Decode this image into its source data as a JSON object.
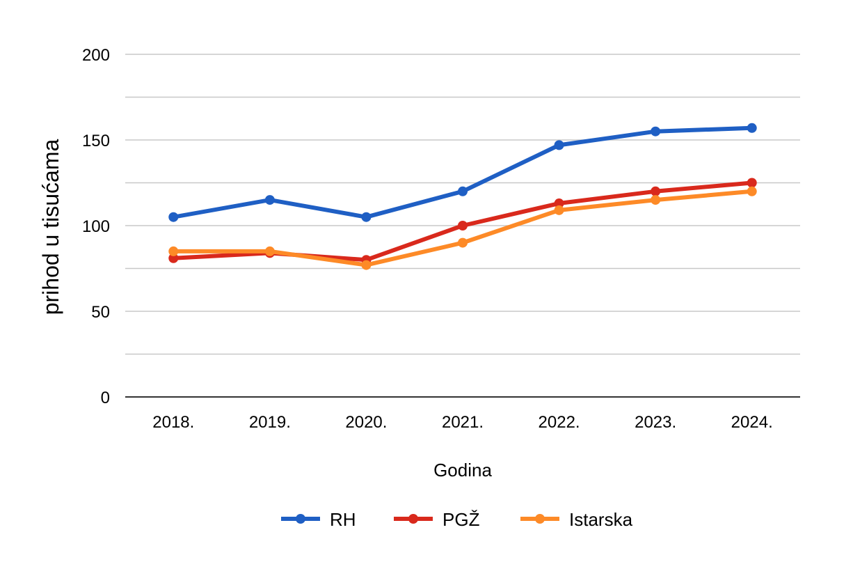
{
  "chart_data": {
    "type": "line",
    "title": "",
    "xlabel": "Godina",
    "ylabel": "prihod u tisućama",
    "categories": [
      "2018.",
      "2019.",
      "2020.",
      "2021.",
      "2022.",
      "2023.",
      "2024."
    ],
    "ylim": [
      0,
      200
    ],
    "yticks": [
      0,
      50,
      100,
      150,
      200
    ],
    "minor_gridlines": [
      25,
      75,
      125,
      175
    ],
    "grid": true,
    "legend_position": "bottom",
    "series": [
      {
        "name": "RH",
        "color": "#1f5fc4",
        "values": [
          105,
          115,
          105,
          120,
          147,
          155,
          157
        ]
      },
      {
        "name": "PGŽ",
        "color": "#d9291c",
        "values": [
          81,
          84,
          80,
          100,
          113,
          120,
          125
        ]
      },
      {
        "name": "Istarska",
        "color": "#fd8a27",
        "values": [
          85,
          85,
          77,
          90,
          109,
          115,
          120
        ]
      }
    ]
  }
}
